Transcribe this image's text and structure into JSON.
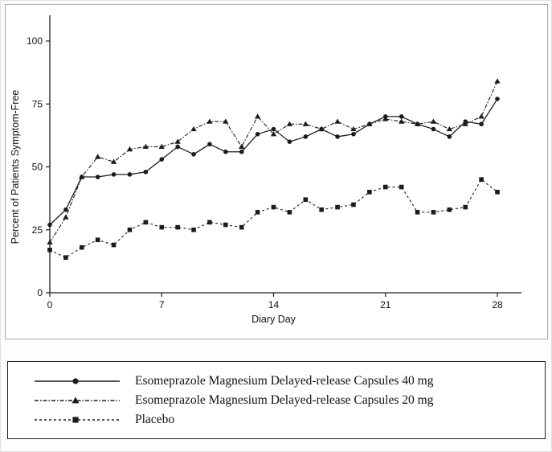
{
  "chart_data": {
    "type": "line",
    "title": "",
    "xlabel": "Diary Day",
    "ylabel": "Percent of Patients Symptom-Free",
    "xlim": [
      0,
      29
    ],
    "ylim": [
      0,
      110
    ],
    "x_ticks": [
      0,
      7,
      14,
      21,
      28
    ],
    "y_ticks": [
      0,
      25,
      50,
      75,
      100
    ],
    "grid": false,
    "legend_position": "bottom-box",
    "line_color": "#1c1c1c",
    "x": [
      0,
      1,
      2,
      3,
      4,
      5,
      6,
      7,
      8,
      9,
      10,
      11,
      12,
      13,
      14,
      15,
      16,
      17,
      18,
      19,
      20,
      21,
      22,
      23,
      24,
      25,
      26,
      27,
      28
    ],
    "series": [
      {
        "name": "Esomeprazole Magnesium Delayed-release Capsules 40 mg",
        "marker": "circle",
        "dash": "solid",
        "values": [
          27,
          33,
          46,
          46,
          47,
          47,
          48,
          53,
          58,
          55,
          59,
          56,
          56,
          63,
          65,
          60,
          62,
          65,
          62,
          63,
          67,
          70,
          70,
          67,
          65,
          62,
          68,
          67,
          77
        ]
      },
      {
        "name": "Esomeprazole Magnesium Delayed-release Capsules 20 mg",
        "marker": "triangle",
        "dash": "dash-dot",
        "values": [
          20,
          30,
          46,
          54,
          52,
          57,
          58,
          58,
          60,
          65,
          68,
          68,
          58,
          70,
          63,
          67,
          67,
          65,
          68,
          65,
          67,
          69,
          68,
          67,
          68,
          65,
          67,
          70,
          84
        ]
      },
      {
        "name": "Placebo",
        "marker": "square",
        "dash": "dash",
        "values": [
          17,
          14,
          18,
          21,
          19,
          25,
          28,
          26,
          26,
          25,
          28,
          27,
          26,
          32,
          34,
          32,
          37,
          33,
          34,
          35,
          40,
          42,
          42,
          32,
          32,
          33,
          34,
          45,
          40
        ]
      }
    ]
  }
}
